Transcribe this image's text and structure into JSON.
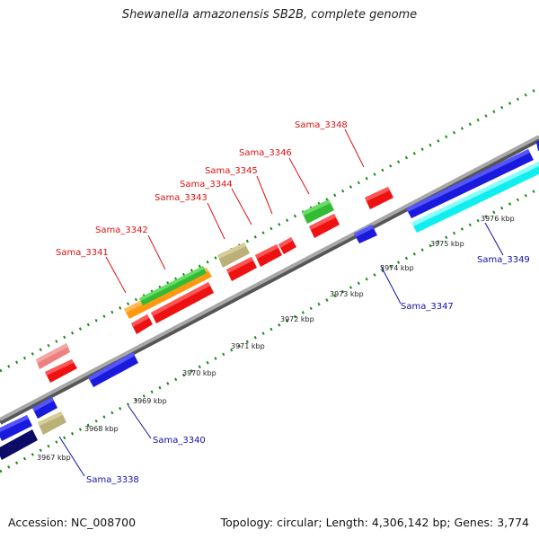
{
  "title": "Shewanella amazonensis SB2B, complete genome",
  "footer": {
    "accession": "Accession: NC_008700",
    "stats": "Topology: circular; Length: 4,306,142 bp; Genes: 3,774"
  },
  "colors": {
    "backbone": "#8c8c8c",
    "tick": "#1a8a1a",
    "top_label": "#dd1111",
    "bottom_label": "#1111aa",
    "red": "#ee1111",
    "blue": "#1a1add",
    "navy": "#0c0c66",
    "cyan": "#11eeee",
    "green": "#33bb33",
    "orange": "#ff9911",
    "khaki": "#bbb077",
    "pink": "#ee8080"
  },
  "position_labels": [
    "3967 kbp",
    "3968 kbp",
    "3969 kbp",
    "3970 kbp",
    "3971 kbp",
    "3972 kbp",
    "3973 kbp",
    "3974 kbp",
    "3975 kbp",
    "3976 kbp"
  ],
  "top_gene_labels": [
    "Sama_3341",
    "Sama_3342",
    "Sama_3343",
    "Sama_3344",
    "Sama_3345",
    "Sama_3346",
    "Sama_3348"
  ],
  "bottom_gene_labels": [
    "Sama_3338",
    "Sama_3340",
    "Sama_3347",
    "Sama_3349"
  ]
}
